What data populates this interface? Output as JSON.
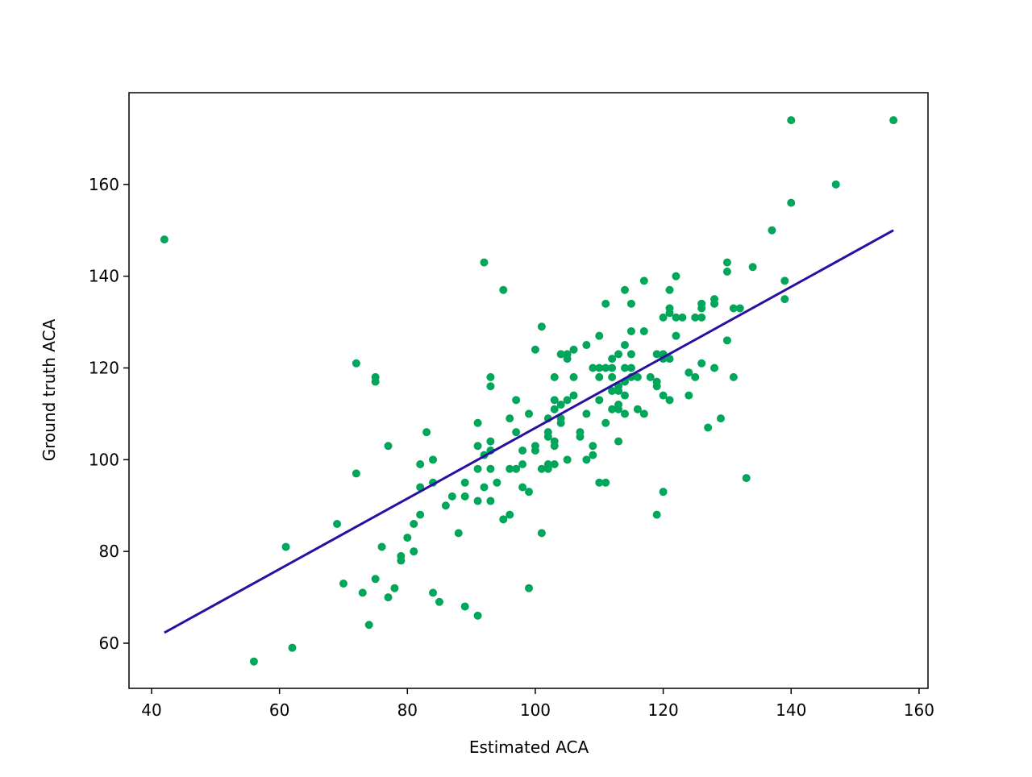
{
  "chart_data": {
    "type": "scatter",
    "x_label": "Estimated ACA",
    "y_label": "Ground truth ACA",
    "xlim": [
      36.47,
      161.4
    ],
    "ylim": [
      50.16,
      180
    ],
    "xticks": [
      40,
      60,
      80,
      100,
      120,
      140,
      160
    ],
    "yticks": [
      60,
      80,
      100,
      120,
      140,
      160
    ],
    "color": "#00a65a",
    "x": [
      42,
      56,
      61,
      62,
      69,
      70,
      72,
      72,
      73,
      74,
      75,
      75,
      75,
      76,
      77,
      77,
      78,
      79,
      79,
      80,
      81,
      81,
      82,
      82,
      82,
      83,
      84,
      84,
      84,
      85,
      86,
      87,
      88,
      89,
      89,
      89,
      91,
      91,
      91,
      91,
      91,
      92,
      92,
      92,
      93,
      93,
      93,
      93,
      93,
      93,
      94,
      95,
      95,
      96,
      96,
      96,
      97,
      97,
      97,
      98,
      98,
      98,
      99,
      99,
      99,
      100,
      100,
      100,
      101,
      101,
      101,
      102,
      102,
      102,
      102,
      102,
      103,
      103,
      103,
      103,
      103,
      103,
      104,
      104,
      104,
      104,
      105,
      105,
      105,
      105,
      106,
      106,
      106,
      107,
      107,
      108,
      108,
      108,
      109,
      109,
      109,
      110,
      110,
      110,
      110,
      110,
      111,
      111,
      111,
      111,
      112,
      112,
      112,
      112,
      112,
      113,
      113,
      113,
      113,
      113,
      113,
      114,
      114,
      114,
      114,
      114,
      114,
      115,
      115,
      115,
      115,
      115,
      116,
      116,
      117,
      117,
      117,
      118,
      119,
      119,
      119,
      119,
      120,
      120,
      120,
      120,
      120,
      121,
      121,
      121,
      121,
      121,
      122,
      122,
      122,
      123,
      124,
      124,
      125,
      125,
      126,
      126,
      126,
      126,
      127,
      128,
      128,
      128,
      129,
      130,
      130,
      130,
      131,
      131,
      132,
      133,
      134,
      137,
      139,
      139,
      140,
      140,
      147,
      156
    ],
    "y": [
      148,
      56,
      81,
      59,
      86,
      73,
      121,
      97,
      71,
      64,
      118,
      117,
      74,
      81,
      103,
      70,
      72,
      79,
      78,
      83,
      86,
      80,
      99,
      94,
      88,
      106,
      100,
      95,
      71,
      69,
      90,
      92,
      84,
      95,
      92,
      68,
      108,
      103,
      98,
      91,
      66,
      143,
      101,
      94,
      118,
      116,
      104,
      102,
      98,
      91,
      95,
      137,
      87,
      109,
      98,
      88,
      113,
      106,
      98,
      102,
      99,
      94,
      110,
      93,
      72,
      124,
      103,
      102,
      129,
      98,
      84,
      109,
      106,
      105,
      99,
      98,
      118,
      113,
      111,
      104,
      103,
      99,
      123,
      112,
      109,
      108,
      123,
      122,
      113,
      100,
      124,
      118,
      114,
      106,
      105,
      125,
      110,
      100,
      120,
      103,
      101,
      127,
      120,
      118,
      113,
      95,
      134,
      120,
      108,
      95,
      122,
      120,
      118,
      115,
      111,
      123,
      116,
      115,
      112,
      111,
      104,
      137,
      125,
      120,
      117,
      114,
      110,
      134,
      128,
      123,
      120,
      118,
      118,
      111,
      139,
      128,
      110,
      118,
      123,
      117,
      116,
      88,
      131,
      123,
      122,
      114,
      93,
      137,
      133,
      132,
      122,
      113,
      140,
      131,
      127,
      131,
      119,
      114,
      131,
      118,
      134,
      133,
      131,
      121,
      107,
      135,
      134,
      120,
      109,
      143,
      141,
      126,
      133,
      118,
      133,
      96,
      142,
      150,
      139,
      135,
      174,
      156,
      160,
      174
    ],
    "fit": {
      "color": "#2a0fa0",
      "x": [
        42,
        156
      ],
      "y": [
        62.3,
        150
      ]
    }
  }
}
